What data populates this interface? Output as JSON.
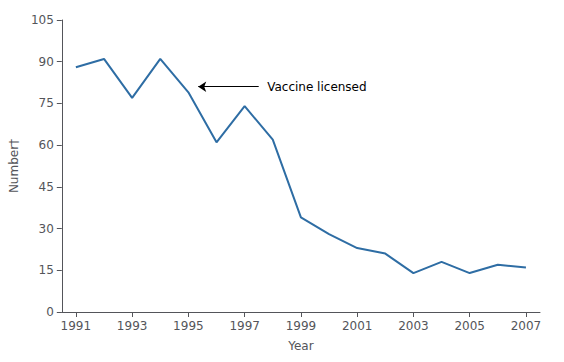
{
  "chart_data": {
    "type": "line",
    "x": [
      1991,
      1992,
      1993,
      1994,
      1995,
      1996,
      1997,
      1998,
      1999,
      2000,
      2001,
      2002,
      2003,
      2004,
      2005,
      2006,
      2007
    ],
    "values": [
      88,
      91,
      77,
      91,
      79,
      61,
      74,
      62,
      34,
      28,
      23,
      21,
      14,
      18,
      14,
      17,
      16
    ],
    "color": "#2e6da4",
    "xlabel": "Year",
    "ylabel": "Number†",
    "xlim": [
      1990.5,
      2007.5
    ],
    "ylim": [
      0,
      105
    ],
    "xticks": [
      1991,
      1993,
      1995,
      1997,
      1999,
      2001,
      2003,
      2005,
      2007
    ],
    "yticks": [
      0,
      15,
      30,
      45,
      60,
      75,
      90,
      105
    ],
    "grid": false,
    "annotations": [
      {
        "text": "Vaccine licensed",
        "x": 1997.8,
        "y": 81,
        "arrow_from": [
          1997.5,
          81
        ],
        "arrow_to": [
          1995.35,
          81
        ]
      }
    ]
  }
}
